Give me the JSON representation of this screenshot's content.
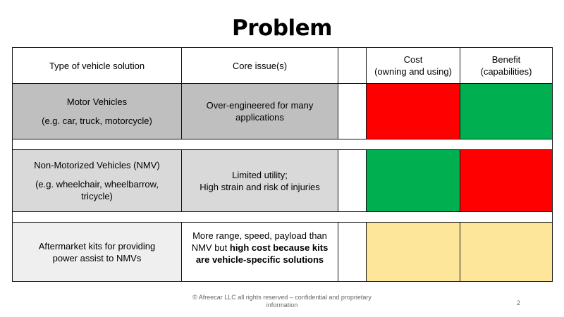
{
  "title": "Problem",
  "header": {
    "col1": "Type of vehicle solution",
    "col2": "Core issue(s)",
    "col3": "",
    "cost_line1": "Cost",
    "cost_line2": "(owning and using)",
    "benefit_line1": "Benefit",
    "benefit_line2": "(capabilities)"
  },
  "rows": [
    {
      "type": "Motor Vehicles",
      "type_sub": "(e.g. car, truck, motorcycle)",
      "issue": "Over-engineered for many applications",
      "cost_color": "#ff0000",
      "benefit_color": "#00b050"
    },
    {
      "type": "Non-Motorized Vehicles (NMV)",
      "type_sub": "(e.g. wheelchair, wheelbarrow, tricycle)",
      "issue_line1": "Limited utility;",
      "issue_line2": "High strain and risk of injuries",
      "cost_color": "#00b050",
      "benefit_color": "#ff0000"
    },
    {
      "type": "Aftermarket kits for providing power assist to NMVs",
      "issue_plain": "More range, speed, payload than NMV but ",
      "issue_bold": "high cost because kits are vehicle-specific solutions",
      "cost_color": "#fde59a",
      "benefit_color": "#fde59a"
    }
  ],
  "footer": "© Afreecar LLC all rights reserved – confidential and proprietary information",
  "page_number": "2"
}
